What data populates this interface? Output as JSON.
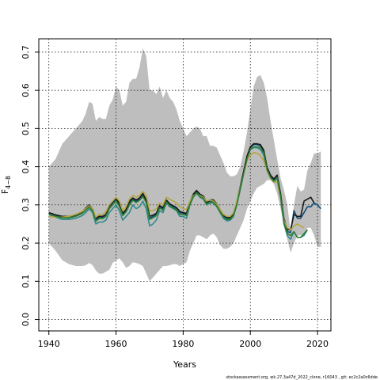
{
  "chart_data": {
    "type": "line",
    "xlabel": "Years",
    "ylabel_main": "F",
    "ylabel_sub": "4−8",
    "xlim": [
      1937,
      2024
    ],
    "ylim": [
      -0.03,
      0.735
    ],
    "grid": true,
    "xticks": [
      1940,
      1960,
      1980,
      2000,
      2020
    ],
    "yticks": [
      0.0,
      0.1,
      0.2,
      0.3,
      0.4,
      0.5,
      0.6,
      0.7
    ],
    "ytick_labels": [
      "0.0",
      "0.1",
      "0.2",
      "0.3",
      "0.4",
      "0.5",
      "0.6",
      "0.7"
    ],
    "band": {
      "color": "#bebebe",
      "x": [
        1940,
        1942,
        1944,
        1946,
        1948,
        1950,
        1951,
        1952,
        1953,
        1954,
        1955,
        1956,
        1957,
        1958,
        1959,
        1960,
        1961,
        1962,
        1963,
        1964,
        1965,
        1966,
        1967,
        1968,
        1969,
        1970,
        1971,
        1972,
        1973,
        1974,
        1975,
        1976,
        1977,
        1978,
        1979,
        1980,
        1981,
        1982,
        1983,
        1984,
        1985,
        1986,
        1987,
        1988,
        1989,
        1990,
        1991,
        1992,
        1993,
        1994,
        1995,
        1996,
        1997,
        1998,
        1999,
        2000,
        2001,
        2002,
        2003,
        2004,
        2005,
        2006,
        2007,
        2008,
        2009,
        2010,
        2011,
        2012,
        2013,
        2014,
        2015,
        2016,
        2017,
        2018,
        2019,
        2020,
        2021
      ],
      "upper": [
        0.4,
        0.42,
        0.46,
        0.48,
        0.5,
        0.52,
        0.54,
        0.57,
        0.565,
        0.52,
        0.53,
        0.525,
        0.525,
        0.56,
        0.575,
        0.61,
        0.6,
        0.56,
        0.57,
        0.62,
        0.63,
        0.63,
        0.66,
        0.71,
        0.69,
        0.6,
        0.6,
        0.59,
        0.61,
        0.58,
        0.6,
        0.58,
        0.57,
        0.55,
        0.52,
        0.5,
        0.48,
        0.49,
        0.5,
        0.505,
        0.5,
        0.48,
        0.48,
        0.455,
        0.455,
        0.45,
        0.43,
        0.41,
        0.385,
        0.375,
        0.375,
        0.38,
        0.4,
        0.44,
        0.49,
        0.55,
        0.61,
        0.635,
        0.64,
        0.62,
        0.58,
        0.52,
        0.47,
        0.42,
        0.37,
        0.34,
        0.3,
        0.23,
        0.3,
        0.35,
        0.335,
        0.34,
        0.39,
        0.41,
        0.435,
        0.435,
        0.44
      ],
      "lower": [
        0.2,
        0.18,
        0.155,
        0.145,
        0.14,
        0.14,
        0.142,
        0.148,
        0.142,
        0.128,
        0.12,
        0.12,
        0.125,
        0.13,
        0.148,
        0.155,
        0.16,
        0.15,
        0.135,
        0.14,
        0.15,
        0.148,
        0.145,
        0.14,
        0.12,
        0.1,
        0.11,
        0.12,
        0.13,
        0.14,
        0.14,
        0.142,
        0.145,
        0.145,
        0.14,
        0.145,
        0.15,
        0.18,
        0.2,
        0.22,
        0.22,
        0.215,
        0.21,
        0.22,
        0.225,
        0.215,
        0.195,
        0.185,
        0.185,
        0.19,
        0.2,
        0.22,
        0.24,
        0.26,
        0.29,
        0.31,
        0.33,
        0.345,
        0.35,
        0.355,
        0.365,
        0.365,
        0.355,
        0.33,
        0.29,
        0.25,
        0.21,
        0.175,
        0.2,
        0.22,
        0.22,
        0.225,
        0.24,
        0.24,
        0.22,
        0.19,
        0.19
      ]
    },
    "series": [
      {
        "color": "#2e8b8b",
        "x": [
          1940,
          1942,
          1944,
          1946,
          1948,
          1950,
          1951,
          1952,
          1953,
          1954,
          1955,
          1956,
          1957,
          1958,
          1959,
          1960,
          1961,
          1962,
          1963,
          1964,
          1965,
          1966,
          1967,
          1968,
          1969,
          1970,
          1971,
          1972,
          1973,
          1974,
          1975,
          1976,
          1977,
          1978,
          1979,
          1980,
          1981,
          1982,
          1983,
          1984,
          1985,
          1986,
          1987,
          1988,
          1989,
          1990,
          1991,
          1992,
          1993,
          1994,
          1995,
          1996,
          1997,
          1998,
          1999,
          2000,
          2001,
          2002,
          2003,
          2004,
          2005,
          2006,
          2007,
          2008,
          2009,
          2010,
          2011,
          2012,
          2013,
          2014,
          2015,
          2016,
          2017
        ],
        "values": [
          0.275,
          0.268,
          0.262,
          0.262,
          0.265,
          0.272,
          0.28,
          0.29,
          0.28,
          0.25,
          0.255,
          0.255,
          0.26,
          0.28,
          0.29,
          0.3,
          0.285,
          0.26,
          0.27,
          0.28,
          0.3,
          0.29,
          0.295,
          0.31,
          0.29,
          0.245,
          0.25,
          0.26,
          0.285,
          0.28,
          0.305,
          0.295,
          0.29,
          0.285,
          0.27,
          0.27,
          0.265,
          0.3,
          0.32,
          0.33,
          0.32,
          0.315,
          0.3,
          0.305,
          0.305,
          0.295,
          0.28,
          0.265,
          0.258,
          0.26,
          0.27,
          0.3,
          0.34,
          0.38,
          0.42,
          0.445,
          0.45,
          0.45,
          0.445,
          0.43,
          0.39,
          0.37,
          0.36,
          0.37,
          0.32,
          0.25,
          0.22,
          0.21,
          0.23,
          0.215,
          0.215,
          0.22,
          0.235
        ]
      },
      {
        "color": "#0b4b7a",
        "x": [
          1940,
          1942,
          1944,
          1946,
          1948,
          1950,
          1951,
          1952,
          1953,
          1954,
          1955,
          1956,
          1957,
          1958,
          1959,
          1960,
          1961,
          1962,
          1963,
          1964,
          1965,
          1966,
          1967,
          1968,
          1969,
          1970,
          1971,
          1972,
          1973,
          1974,
          1975,
          1976,
          1977,
          1978,
          1979,
          1980,
          1981,
          1982,
          1983,
          1984,
          1985,
          1986,
          1987,
          1988,
          1989,
          1990,
          1991,
          1992,
          1993,
          1994,
          1995,
          1996,
          1997,
          1998,
          1999,
          2000,
          2001,
          2002,
          2003,
          2004,
          2005,
          2006,
          2007,
          2008,
          2009,
          2010,
          2011,
          2012,
          2013,
          2014,
          2015,
          2016,
          2017,
          2018,
          2019,
          2020,
          2021
        ],
        "values": [
          0.278,
          0.272,
          0.268,
          0.268,
          0.272,
          0.28,
          0.29,
          0.298,
          0.288,
          0.262,
          0.268,
          0.268,
          0.272,
          0.295,
          0.305,
          0.315,
          0.3,
          0.275,
          0.285,
          0.305,
          0.315,
          0.31,
          0.315,
          0.325,
          0.31,
          0.265,
          0.27,
          0.275,
          0.295,
          0.29,
          0.31,
          0.3,
          0.295,
          0.29,
          0.28,
          0.278,
          0.275,
          0.305,
          0.325,
          0.335,
          0.325,
          0.32,
          0.305,
          0.31,
          0.31,
          0.3,
          0.285,
          0.27,
          0.265,
          0.265,
          0.275,
          0.305,
          0.345,
          0.385,
          0.425,
          0.45,
          0.458,
          0.458,
          0.455,
          0.44,
          0.395,
          0.375,
          0.365,
          0.375,
          0.325,
          0.26,
          0.23,
          0.228,
          0.285,
          0.265,
          0.265,
          0.28,
          0.295,
          0.295,
          0.305,
          0.3,
          0.29
        ]
      },
      {
        "color": "#1a1a1a",
        "x": [
          1940,
          1942,
          1944,
          1946,
          1948,
          1950,
          1951,
          1952,
          1953,
          1954,
          1955,
          1956,
          1957,
          1958,
          1959,
          1960,
          1961,
          1962,
          1963,
          1964,
          1965,
          1966,
          1967,
          1968,
          1969,
          1970,
          1971,
          1972,
          1973,
          1974,
          1975,
          1976,
          1977,
          1978,
          1979,
          1980,
          1981,
          1982,
          1983,
          1984,
          1985,
          1986,
          1987,
          1988,
          1989,
          1990,
          1991,
          1992,
          1993,
          1994,
          1995,
          1996,
          1997,
          1998,
          1999,
          2000,
          2001,
          2002,
          2003,
          2004,
          2005,
          2006,
          2007,
          2008,
          2009,
          2010,
          2011,
          2012,
          2013,
          2014,
          2015,
          2016,
          2017,
          2018,
          2019
        ],
        "values": [
          0.28,
          0.274,
          0.27,
          0.27,
          0.274,
          0.282,
          0.292,
          0.3,
          0.29,
          0.265,
          0.27,
          0.27,
          0.275,
          0.298,
          0.308,
          0.318,
          0.303,
          0.278,
          0.288,
          0.31,
          0.318,
          0.313,
          0.318,
          0.33,
          0.313,
          0.27,
          0.273,
          0.278,
          0.298,
          0.293,
          0.313,
          0.303,
          0.298,
          0.293,
          0.283,
          0.28,
          0.278,
          0.308,
          0.328,
          0.338,
          0.328,
          0.323,
          0.308,
          0.313,
          0.313,
          0.303,
          0.288,
          0.273,
          0.268,
          0.268,
          0.278,
          0.308,
          0.348,
          0.388,
          0.428,
          0.452,
          0.46,
          0.46,
          0.458,
          0.443,
          0.398,
          0.378,
          0.368,
          0.378,
          0.33,
          0.265,
          0.235,
          0.235,
          0.275,
          0.27,
          0.27,
          0.31,
          0.315,
          0.32,
          0.305
        ]
      },
      {
        "color": "#b5a642",
        "x": [
          1940,
          1942,
          1944,
          1946,
          1948,
          1950,
          1951,
          1952,
          1953,
          1954,
          1955,
          1956,
          1957,
          1958,
          1959,
          1960,
          1961,
          1962,
          1963,
          1964,
          1965,
          1966,
          1967,
          1968,
          1969,
          1970,
          1971,
          1972,
          1973,
          1974,
          1975,
          1976,
          1977,
          1978,
          1979,
          1980,
          1981,
          1982,
          1983,
          1984,
          1985,
          1986,
          1987,
          1988,
          1989,
          1990,
          1991,
          1992,
          1993,
          1994,
          1995,
          1996,
          1997,
          1998,
          1999,
          2000,
          2001,
          2002,
          2003,
          2004,
          2005,
          2006,
          2007,
          2008,
          2009,
          2010,
          2011,
          2012,
          2013,
          2014,
          2015,
          2016
        ],
        "values": [
          0.27,
          0.268,
          0.268,
          0.27,
          0.275,
          0.283,
          0.29,
          0.298,
          0.29,
          0.268,
          0.275,
          0.275,
          0.282,
          0.3,
          0.31,
          0.32,
          0.31,
          0.285,
          0.295,
          0.315,
          0.325,
          0.32,
          0.325,
          0.335,
          0.325,
          0.285,
          0.285,
          0.29,
          0.305,
          0.3,
          0.32,
          0.315,
          0.31,
          0.305,
          0.295,
          0.29,
          0.288,
          0.31,
          0.325,
          0.33,
          0.325,
          0.32,
          0.31,
          0.313,
          0.31,
          0.302,
          0.288,
          0.275,
          0.27,
          0.27,
          0.28,
          0.31,
          0.345,
          0.38,
          0.415,
          0.43,
          0.437,
          0.435,
          0.43,
          0.415,
          0.39,
          0.37,
          0.36,
          0.36,
          0.32,
          0.26,
          0.24,
          0.235,
          0.245,
          0.25,
          0.245,
          0.24
        ]
      },
      {
        "color": "#2e7d32",
        "x": [
          1940,
          1942,
          1944,
          1946,
          1948,
          1950,
          1951,
          1952,
          1953,
          1954,
          1955,
          1956,
          1957,
          1958,
          1959,
          1960,
          1961,
          1962,
          1963,
          1964,
          1965,
          1966,
          1967,
          1968,
          1969,
          1970,
          1971,
          1972,
          1973,
          1974,
          1975,
          1976,
          1977,
          1978,
          1979,
          1980,
          1981,
          1982,
          1983,
          1984,
          1985,
          1986,
          1987,
          1988,
          1989,
          1990,
          1991,
          1992,
          1993,
          1994,
          1995,
          1996,
          1997,
          1998,
          1999,
          2000,
          2001,
          2002,
          2003,
          2004,
          2005,
          2006,
          2007,
          2008,
          2009,
          2010,
          2011,
          2012,
          2013,
          2014,
          2015,
          2016,
          2017
        ],
        "values": [
          0.276,
          0.27,
          0.266,
          0.266,
          0.27,
          0.278,
          0.286,
          0.295,
          0.285,
          0.258,
          0.264,
          0.264,
          0.27,
          0.29,
          0.3,
          0.31,
          0.296,
          0.272,
          0.282,
          0.3,
          0.312,
          0.306,
          0.312,
          0.322,
          0.306,
          0.262,
          0.266,
          0.272,
          0.292,
          0.286,
          0.308,
          0.298,
          0.292,
          0.288,
          0.276,
          0.275,
          0.272,
          0.302,
          0.322,
          0.332,
          0.322,
          0.317,
          0.302,
          0.307,
          0.307,
          0.297,
          0.282,
          0.267,
          0.262,
          0.262,
          0.272,
          0.302,
          0.342,
          0.382,
          0.42,
          0.445,
          0.452,
          0.452,
          0.45,
          0.436,
          0.392,
          0.372,
          0.362,
          0.372,
          0.322,
          0.255,
          0.225,
          0.22,
          0.23,
          0.215,
          0.215,
          0.225,
          0.235
        ]
      }
    ]
  },
  "footer": {
    "note": "stockassessment.org, wk.27.3a47d_2022_clone, r16043 , git: ec2c2a0c6dde"
  }
}
